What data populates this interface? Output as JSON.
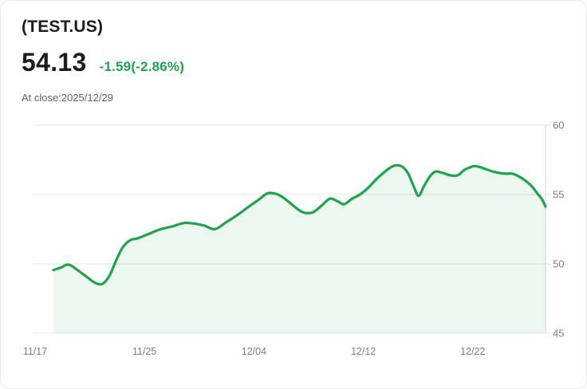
{
  "header": {
    "symbol": "(TEST.US)",
    "price": "54.13",
    "change": "-1.59(-2.86%)",
    "as_of": "At close:2025/12/29"
  },
  "colors": {
    "accent_green": "#1ea34f",
    "area_fill_green": "#e8f4ec",
    "text_primary": "#1b1c1f",
    "text_secondary": "#5e6166",
    "axis_text": "#7b7e83",
    "grid_line": "#e4e4e4",
    "axis_line": "#d7d7d7",
    "card_border": "#e7e9ee"
  },
  "chart_data": {
    "type": "area",
    "title": "",
    "xlabel": "",
    "ylabel": "",
    "ylim": [
      45,
      60
    ],
    "y_ticks": [
      60,
      55,
      50,
      45
    ],
    "y_axis_side": "right",
    "grid": "horizontal",
    "legend": "none",
    "x_labels": [
      "11/17",
      "11/25",
      "12/04",
      "12/12",
      "12/22"
    ],
    "series": [
      {
        "name": "TEST.US close price",
        "points": [
          [
            0.0,
            49.55
          ],
          [
            0.016,
            49.75
          ],
          [
            0.031,
            49.95
          ],
          [
            0.049,
            49.55
          ],
          [
            0.068,
            49.05
          ],
          [
            0.084,
            48.65
          ],
          [
            0.099,
            48.55
          ],
          [
            0.114,
            49.15
          ],
          [
            0.128,
            50.3
          ],
          [
            0.141,
            51.2
          ],
          [
            0.156,
            51.7
          ],
          [
            0.172,
            51.85
          ],
          [
            0.193,
            52.15
          ],
          [
            0.218,
            52.5
          ],
          [
            0.242,
            52.7
          ],
          [
            0.266,
            52.95
          ],
          [
            0.287,
            52.9
          ],
          [
            0.307,
            52.75
          ],
          [
            0.328,
            52.5
          ],
          [
            0.351,
            53.0
          ],
          [
            0.373,
            53.5
          ],
          [
            0.396,
            54.1
          ],
          [
            0.416,
            54.6
          ],
          [
            0.433,
            55.05
          ],
          [
            0.446,
            55.1
          ],
          [
            0.464,
            54.85
          ],
          [
            0.484,
            54.3
          ],
          [
            0.505,
            53.75
          ],
          [
            0.526,
            53.7
          ],
          [
            0.545,
            54.2
          ],
          [
            0.562,
            54.7
          ],
          [
            0.578,
            54.5
          ],
          [
            0.591,
            54.3
          ],
          [
            0.607,
            54.7
          ],
          [
            0.623,
            55.0
          ],
          [
            0.64,
            55.5
          ],
          [
            0.656,
            56.1
          ],
          [
            0.672,
            56.6
          ],
          [
            0.685,
            56.95
          ],
          [
            0.696,
            57.1
          ],
          [
            0.709,
            57.0
          ],
          [
            0.721,
            56.5
          ],
          [
            0.732,
            55.6
          ],
          [
            0.742,
            54.9
          ],
          [
            0.753,
            55.6
          ],
          [
            0.765,
            56.3
          ],
          [
            0.776,
            56.65
          ],
          [
            0.787,
            56.6
          ],
          [
            0.8,
            56.45
          ],
          [
            0.812,
            56.35
          ],
          [
            0.823,
            56.4
          ],
          [
            0.834,
            56.75
          ],
          [
            0.846,
            56.95
          ],
          [
            0.856,
            57.05
          ],
          [
            0.869,
            56.95
          ],
          [
            0.881,
            56.8
          ],
          [
            0.894,
            56.65
          ],
          [
            0.907,
            56.55
          ],
          [
            0.92,
            56.5
          ],
          [
            0.933,
            56.5
          ],
          [
            0.946,
            56.3
          ],
          [
            0.959,
            56.0
          ],
          [
            0.972,
            55.6
          ],
          [
            0.984,
            55.05
          ],
          [
            0.992,
            54.7
          ],
          [
            1.0,
            54.13
          ]
        ]
      }
    ]
  }
}
